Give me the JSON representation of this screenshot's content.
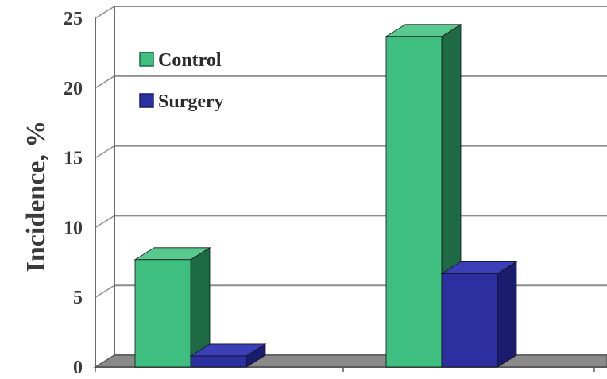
{
  "chart_data": {
    "type": "bar",
    "style": "3d-clustered-column",
    "categories": [
      "",
      ""
    ],
    "series": [
      {
        "name": "Control",
        "values": [
          7.7,
          23.7
        ],
        "color": "#3fbf7f",
        "side_color": "#1e6a45",
        "top_color": "#58c88f"
      },
      {
        "name": "Surgery",
        "values": [
          0.8,
          6.7
        ],
        "color": "#2b2fa0",
        "side_color": "#1a1c6e",
        "top_color": "#3a3fb8"
      }
    ],
    "ylabel": "Incidence, %",
    "xlabel": "",
    "ylim": [
      0,
      25
    ],
    "yticks": [
      "0",
      "5",
      "10",
      "15",
      "20",
      "25"
    ],
    "grid": true,
    "legend_position": "top-left",
    "floor_color": "#8a8a8a",
    "grid_color": "#8c8c8c"
  }
}
